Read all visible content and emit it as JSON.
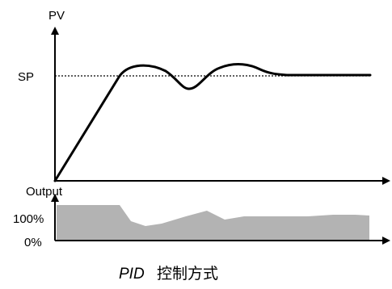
{
  "labels": {
    "pv": "PV",
    "sp": "SP",
    "output": "Output",
    "pct_100": "100%",
    "pct_0": "0%"
  },
  "caption": {
    "title": "PID",
    "subtitle": "控制方式"
  },
  "colors": {
    "axis": "#000000",
    "curve": "#000000",
    "setpoint_line": "#000000",
    "output_fill": "#b3b3b3"
  },
  "chart_data": {
    "type": "line",
    "series": [
      {
        "values": [
          0,
          1,
          1.066,
          0.886,
          1.047,
          1.0,
          1.0
        ]
      }
    ]
  }
}
